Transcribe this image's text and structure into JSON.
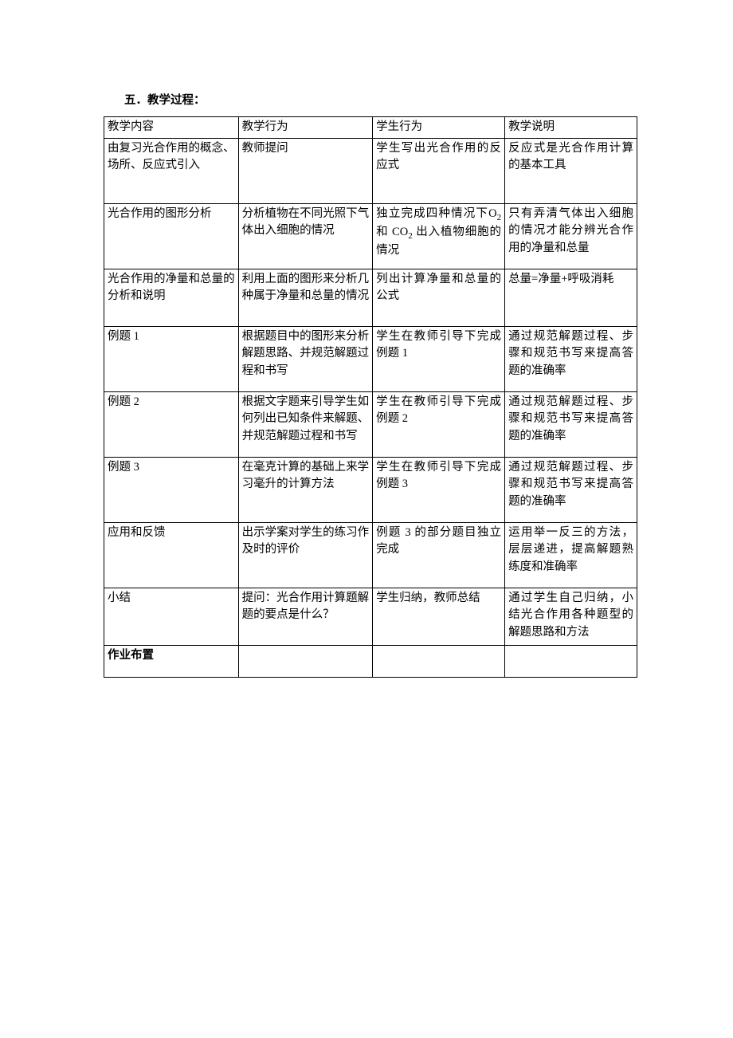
{
  "heading": "五．教学过程：",
  "columns": [
    "教学内容",
    "教学行为",
    "学生行为",
    "教学说明"
  ],
  "rows": [
    {
      "c1": "由复习光合作用的概念、场所、反应式引入",
      "c2": "教师提问",
      "c3": "学生写出光合作用的反应式",
      "c4": "反应式是光合作用计算的基本工具",
      "h": "tall"
    },
    {
      "c1": "光合作用的图形分析",
      "c2": "分析植物在不同光照下气体出入细胞的情况",
      "c3_html": "独立完成四种情况下O<span class=\"sub\">2</span> 和 CO<span class=\"sub\">2</span> 出入植物细胞的情况",
      "c4": "只有弄清气体出入细胞的情况才能分辨光合作用的净量和总量",
      "h": "tall"
    },
    {
      "c1": "光合作用的净量和总量的分析和说明",
      "c2": "利用上面的图形来分析几种属于净量和总量的情况",
      "c3": "列出计算净量和总量的公式",
      "c4": "总量=净量+呼吸消耗",
      "h": "med"
    },
    {
      "c1": "例题 1",
      "c2": "根据题目中的图形来分析解题思路、并规范解题过程和书写",
      "c3": "学生在教师引导下完成例题 1",
      "c4": "通过规范解题过程、步骤和规范书写来提高答题的准确率",
      "h": "tall"
    },
    {
      "c1": "例题 2",
      "c2": "根据文字题来引导学生如何列出已知条件来解题、并规范解题过程和书写",
      "c3": "学生在教师引导下完成例题 2",
      "c4": "通过规范解题过程、步骤和规范书写来提高答题的准确率",
      "h": "tall"
    },
    {
      "c1": "例题 3",
      "c2": "在毫克计算的基础上来学习毫升的计算方法",
      "c3": "学生在教师引导下完成例题 3",
      "c4": "通过规范解题过程、步骤和规范书写来提高答题的准确率",
      "h": "tall"
    },
    {
      "c1": "应用和反馈",
      "c2": "出示学案对学生的练习作及时的评价",
      "c3": "例题 3 的部分题目独立完成",
      "c4": "运用举一反三的方法，层层递进，提高解题熟练度和准确率",
      "h": "tall"
    },
    {
      "c1": "小结",
      "c2": "提问：光合作用计算题解题的要点是什么？",
      "c3": "学生归纳，教师总结",
      "c4": "通过学生自己归纳，小结光合作用各种题型的解题思路和方法",
      "h": "med"
    },
    {
      "c1_bold": "作业布置",
      "c2": "",
      "c3": "",
      "c4": "",
      "h": "short"
    }
  ]
}
